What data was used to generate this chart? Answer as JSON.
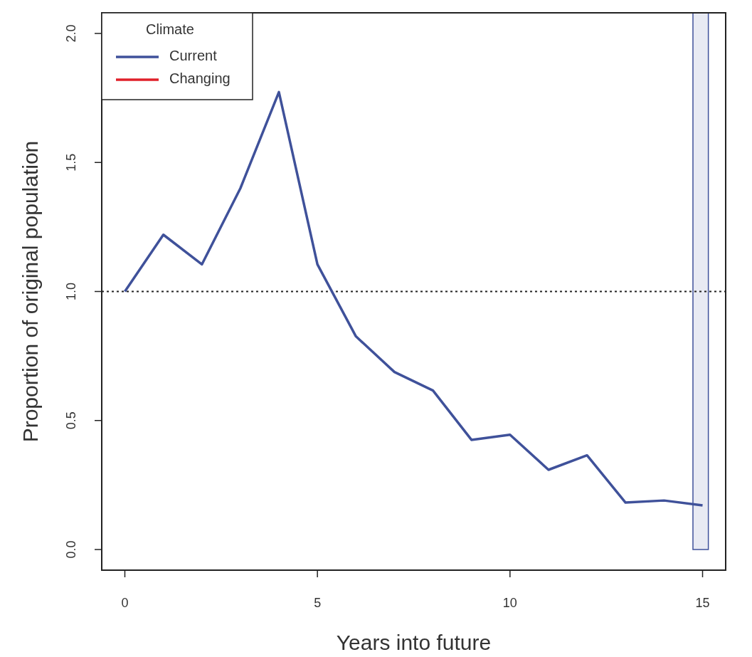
{
  "chart_data": {
    "type": "line",
    "xlabel": "Years into future",
    "ylabel": "Proportion of original population",
    "legend_title": "Climate",
    "legend": "top left",
    "x": [
      0,
      1,
      2,
      3,
      4,
      5,
      6,
      7,
      8,
      9,
      10,
      11,
      12,
      13,
      14,
      15
    ],
    "series": [
      {
        "name": "Current",
        "color": "#3f519a",
        "values": [
          1.0,
          1.22,
          1.105,
          1.4,
          1.773,
          1.105,
          0.826,
          0.688,
          0.616,
          0.425,
          0.445,
          0.309,
          0.365,
          0.182,
          0.19,
          0.171
        ]
      },
      {
        "name": "Changing",
        "color": "#e0202a",
        "values": [
          null,
          null,
          null,
          null,
          null,
          null,
          null,
          null,
          null,
          null,
          null,
          null,
          null,
          null,
          null,
          null
        ]
      }
    ],
    "xlim": [
      -0.6,
      15.6
    ],
    "xticks": [
      0,
      5,
      10,
      15
    ],
    "ylim": [
      -0.08,
      2.08
    ],
    "yticks": [
      {
        "value": 0,
        "label": "0.0"
      },
      {
        "value": 0.5,
        "label": "0.5"
      },
      {
        "value": 1,
        "label": "1.0"
      },
      {
        "value": 1.5,
        "label": "1.5"
      },
      {
        "value": 2,
        "label": "2.0"
      }
    ],
    "ref_lines": [
      {
        "axis": "y",
        "value": 1,
        "color": "#222222",
        "line_style": "dotted"
      }
    ],
    "bands": [
      {
        "axis": "x",
        "from": 14.75,
        "to": 15.15,
        "color": "#3f519a"
      }
    ],
    "grid": false,
    "line_style": "solid",
    "marker": "none"
  }
}
